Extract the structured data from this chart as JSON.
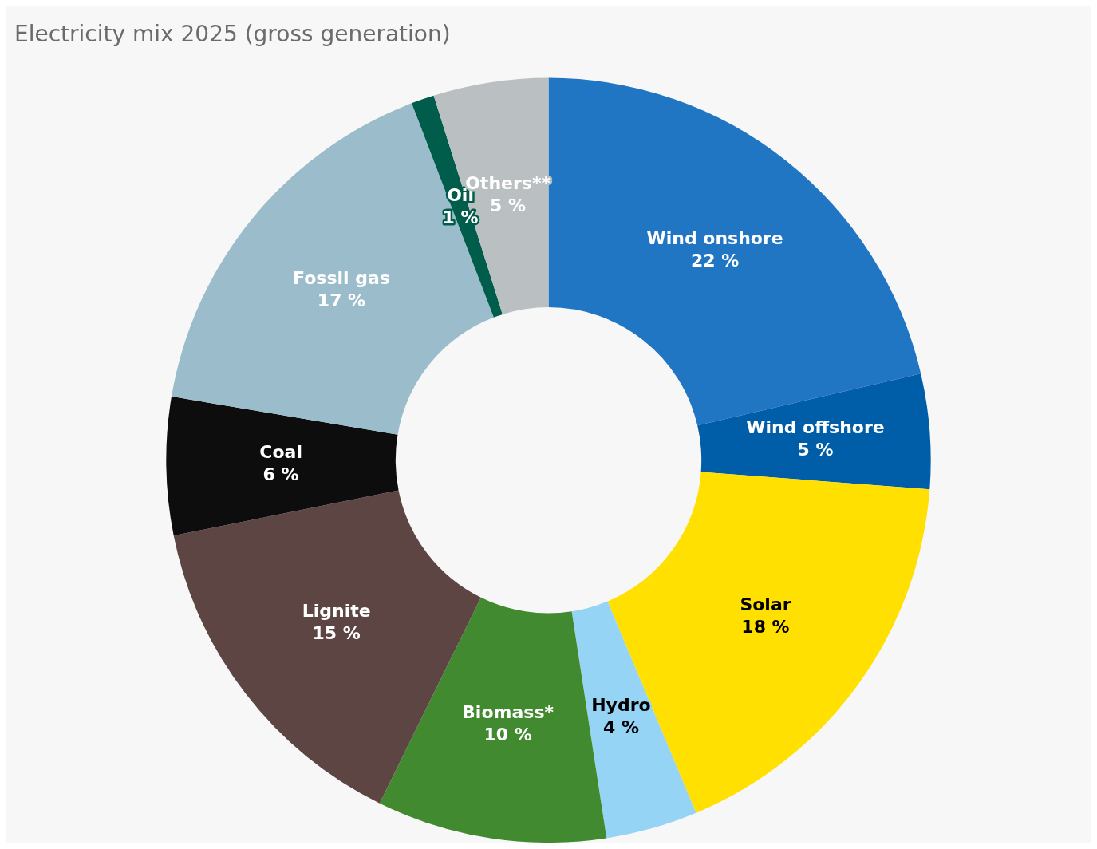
{
  "chart_data": {
    "type": "donut",
    "title": "Electricity mix 2025 (gross generation)",
    "categories": [
      "Wind onshore",
      "Wind offshore",
      "Solar",
      "Hydro",
      "Biomass*",
      "Lignite",
      "Coal",
      "Fossil gas",
      "Oil",
      "Others**"
    ],
    "values": [
      22,
      5,
      18,
      4,
      10,
      15,
      6,
      17,
      1,
      5
    ],
    "value_labels": [
      "22 %",
      "5 %",
      "18 %",
      "4 %",
      "10 %",
      "15 %",
      "6 %",
      "17 %",
      "1 %",
      "5 %"
    ],
    "colors": [
      "#2176c4",
      "#005ea8",
      "#ffe000",
      "#96d4f5",
      "#418a2f",
      "#5d4543",
      "#0d0d0d",
      "#9bbccb",
      "#005c4b",
      "#babfc1"
    ],
    "legend": false
  }
}
